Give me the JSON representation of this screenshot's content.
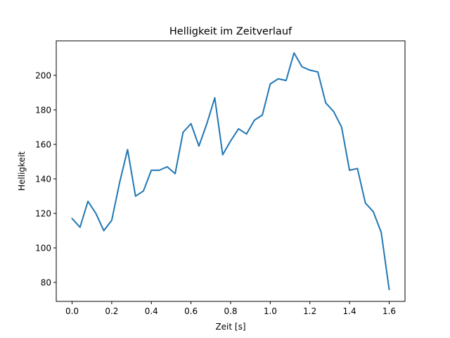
{
  "chart_data": {
    "type": "line",
    "title": "Helligkeit im Zeitverlauf",
    "xlabel": "Zeit [s]",
    "ylabel": "Helligkeit",
    "xlim": [
      -0.08,
      1.68
    ],
    "ylim": [
      69,
      220
    ],
    "xticks": [
      0.0,
      0.2,
      0.4,
      0.6,
      0.8,
      1.0,
      1.2,
      1.4,
      1.6
    ],
    "xtick_labels": [
      "0.0",
      "0.2",
      "0.4",
      "0.6",
      "0.8",
      "1.0",
      "1.2",
      "1.4",
      "1.6"
    ],
    "yticks": [
      80,
      100,
      120,
      140,
      160,
      180,
      200
    ],
    "ytick_labels": [
      "80",
      "100",
      "120",
      "140",
      "160",
      "180",
      "200"
    ],
    "grid": false,
    "series": [
      {
        "color": "#1f77b4",
        "x": [
          0.0,
          0.04,
          0.08,
          0.12,
          0.16,
          0.2,
          0.24,
          0.28,
          0.32,
          0.36,
          0.4,
          0.44,
          0.48,
          0.52,
          0.56,
          0.6,
          0.64,
          0.68,
          0.72,
          0.76,
          0.8,
          0.84,
          0.88,
          0.92,
          0.96,
          1.0,
          1.04,
          1.08,
          1.12,
          1.16,
          1.2,
          1.24,
          1.28,
          1.32,
          1.36,
          1.4,
          1.44,
          1.48,
          1.52,
          1.56,
          1.6
        ],
        "y": [
          117,
          112,
          127,
          120,
          110,
          116,
          138,
          157,
          130,
          133,
          145,
          145,
          147,
          143,
          167,
          172,
          159,
          172,
          187,
          154,
          162,
          169,
          166,
          174,
          177,
          195,
          198,
          197,
          213,
          205,
          203,
          202,
          184,
          179,
          170,
          145,
          146,
          126,
          121,
          109,
          76
        ]
      }
    ]
  }
}
